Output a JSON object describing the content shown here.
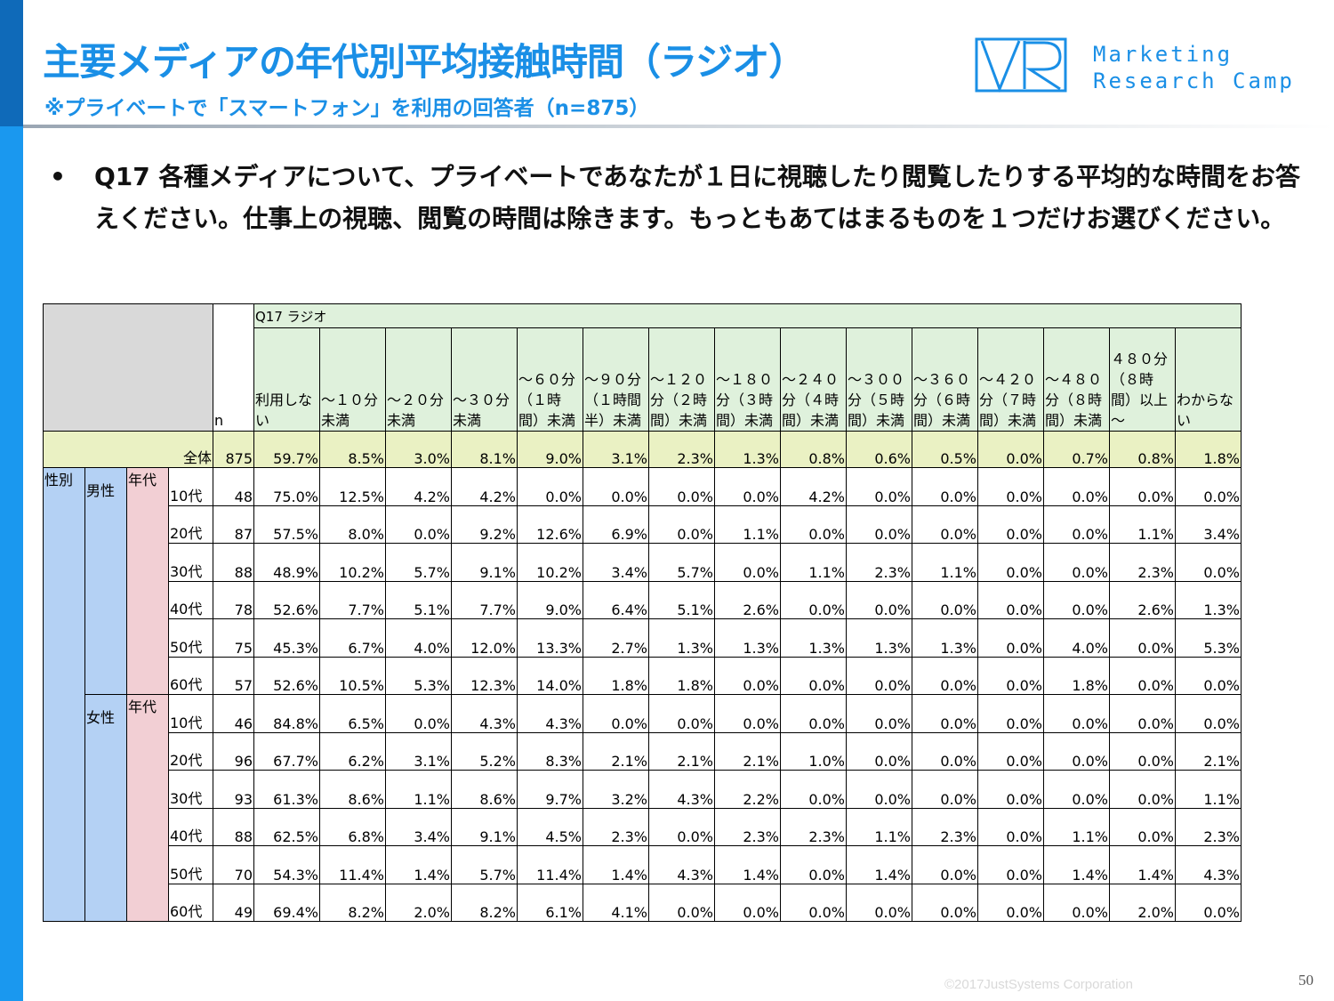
{
  "title": "主要メディアの年代別平均接触時間（ラジオ）",
  "subtitle": "※プライベートで「スマートフォン」を利用の回答者（n=875）",
  "logo": {
    "line1": "Marketing",
    "line2": "Research Camp"
  },
  "question": {
    "bullet": "•",
    "text": "Q17 各種メディアについて、プライベートであなたが１日に視聴したり閲覧したりする平均的な時間をお答えください。仕事上の視聴、閲覧の時間は除きます。もっともあてはまるものを１つだけお選びください。"
  },
  "table": {
    "group_header": "Q17 ラジオ",
    "n_label": "n",
    "columns": [
      "利用しない",
      "～１０分未満",
      "～２０分未満",
      "～３０分未満",
      "～６０分（１時間）未満",
      "～９０分（１時間半）未満",
      "～１２０分（２時間）未満",
      "～１８０分（３時間）未満",
      "～２４０分（４時間）未満",
      "～３００分（５時間）未満",
      "～３６０分（６時間）未満",
      "～４２０分（７時間）未満",
      "～４８０分（８時間）未満",
      "４８０分（８時間）以上～",
      "わからない"
    ],
    "total": {
      "label": "全体",
      "n": "875",
      "values": [
        "59.7%",
        "8.5%",
        "3.0%",
        "8.1%",
        "9.0%",
        "3.1%",
        "2.3%",
        "1.3%",
        "0.8%",
        "0.6%",
        "0.5%",
        "0.0%",
        "0.7%",
        "0.8%",
        "1.8%"
      ]
    },
    "sex_label": "性別",
    "age_label": "年代",
    "groups": [
      {
        "label": "男性",
        "rows": [
          {
            "age": "10代",
            "n": "48",
            "values": [
              "75.0%",
              "12.5%",
              "4.2%",
              "4.2%",
              "0.0%",
              "0.0%",
              "0.0%",
              "0.0%",
              "4.2%",
              "0.0%",
              "0.0%",
              "0.0%",
              "0.0%",
              "0.0%",
              "0.0%"
            ]
          },
          {
            "age": "20代",
            "n": "87",
            "values": [
              "57.5%",
              "8.0%",
              "0.0%",
              "9.2%",
              "12.6%",
              "6.9%",
              "0.0%",
              "1.1%",
              "0.0%",
              "0.0%",
              "0.0%",
              "0.0%",
              "0.0%",
              "1.1%",
              "3.4%"
            ]
          },
          {
            "age": "30代",
            "n": "88",
            "values": [
              "48.9%",
              "10.2%",
              "5.7%",
              "9.1%",
              "10.2%",
              "3.4%",
              "5.7%",
              "0.0%",
              "1.1%",
              "2.3%",
              "1.1%",
              "0.0%",
              "0.0%",
              "2.3%",
              "0.0%"
            ]
          },
          {
            "age": "40代",
            "n": "78",
            "values": [
              "52.6%",
              "7.7%",
              "5.1%",
              "7.7%",
              "9.0%",
              "6.4%",
              "5.1%",
              "2.6%",
              "0.0%",
              "0.0%",
              "0.0%",
              "0.0%",
              "0.0%",
              "2.6%",
              "1.3%"
            ]
          },
          {
            "age": "50代",
            "n": "75",
            "values": [
              "45.3%",
              "6.7%",
              "4.0%",
              "12.0%",
              "13.3%",
              "2.7%",
              "1.3%",
              "1.3%",
              "1.3%",
              "1.3%",
              "1.3%",
              "0.0%",
              "4.0%",
              "0.0%",
              "5.3%"
            ]
          },
          {
            "age": "60代",
            "n": "57",
            "values": [
              "52.6%",
              "10.5%",
              "5.3%",
              "12.3%",
              "14.0%",
              "1.8%",
              "1.8%",
              "0.0%",
              "0.0%",
              "0.0%",
              "0.0%",
              "0.0%",
              "1.8%",
              "0.0%",
              "0.0%"
            ]
          }
        ]
      },
      {
        "label": "女性",
        "rows": [
          {
            "age": "10代",
            "n": "46",
            "values": [
              "84.8%",
              "6.5%",
              "0.0%",
              "4.3%",
              "4.3%",
              "0.0%",
              "0.0%",
              "0.0%",
              "0.0%",
              "0.0%",
              "0.0%",
              "0.0%",
              "0.0%",
              "0.0%",
              "0.0%"
            ]
          },
          {
            "age": "20代",
            "n": "96",
            "values": [
              "67.7%",
              "6.2%",
              "3.1%",
              "5.2%",
              "8.3%",
              "2.1%",
              "2.1%",
              "2.1%",
              "1.0%",
              "0.0%",
              "0.0%",
              "0.0%",
              "0.0%",
              "0.0%",
              "2.1%"
            ]
          },
          {
            "age": "30代",
            "n": "93",
            "values": [
              "61.3%",
              "8.6%",
              "1.1%",
              "8.6%",
              "9.7%",
              "3.2%",
              "4.3%",
              "2.2%",
              "0.0%",
              "0.0%",
              "0.0%",
              "0.0%",
              "0.0%",
              "0.0%",
              "1.1%"
            ]
          },
          {
            "age": "40代",
            "n": "88",
            "values": [
              "62.5%",
              "6.8%",
              "3.4%",
              "9.1%",
              "4.5%",
              "2.3%",
              "0.0%",
              "2.3%",
              "2.3%",
              "1.1%",
              "2.3%",
              "0.0%",
              "1.1%",
              "0.0%",
              "2.3%"
            ]
          },
          {
            "age": "50代",
            "n": "70",
            "values": [
              "54.3%",
              "11.4%",
              "1.4%",
              "5.7%",
              "11.4%",
              "1.4%",
              "4.3%",
              "1.4%",
              "0.0%",
              "1.4%",
              "0.0%",
              "0.0%",
              "1.4%",
              "1.4%",
              "4.3%"
            ]
          },
          {
            "age": "60代",
            "n": "49",
            "values": [
              "69.4%",
              "8.2%",
              "2.0%",
              "8.2%",
              "6.1%",
              "4.1%",
              "0.0%",
              "0.0%",
              "0.0%",
              "0.0%",
              "0.0%",
              "0.0%",
              "0.0%",
              "2.0%",
              "0.0%"
            ]
          }
        ]
      }
    ]
  },
  "footer": {
    "copyright": "©2017JustSystems Corporation",
    "page": "50"
  }
}
